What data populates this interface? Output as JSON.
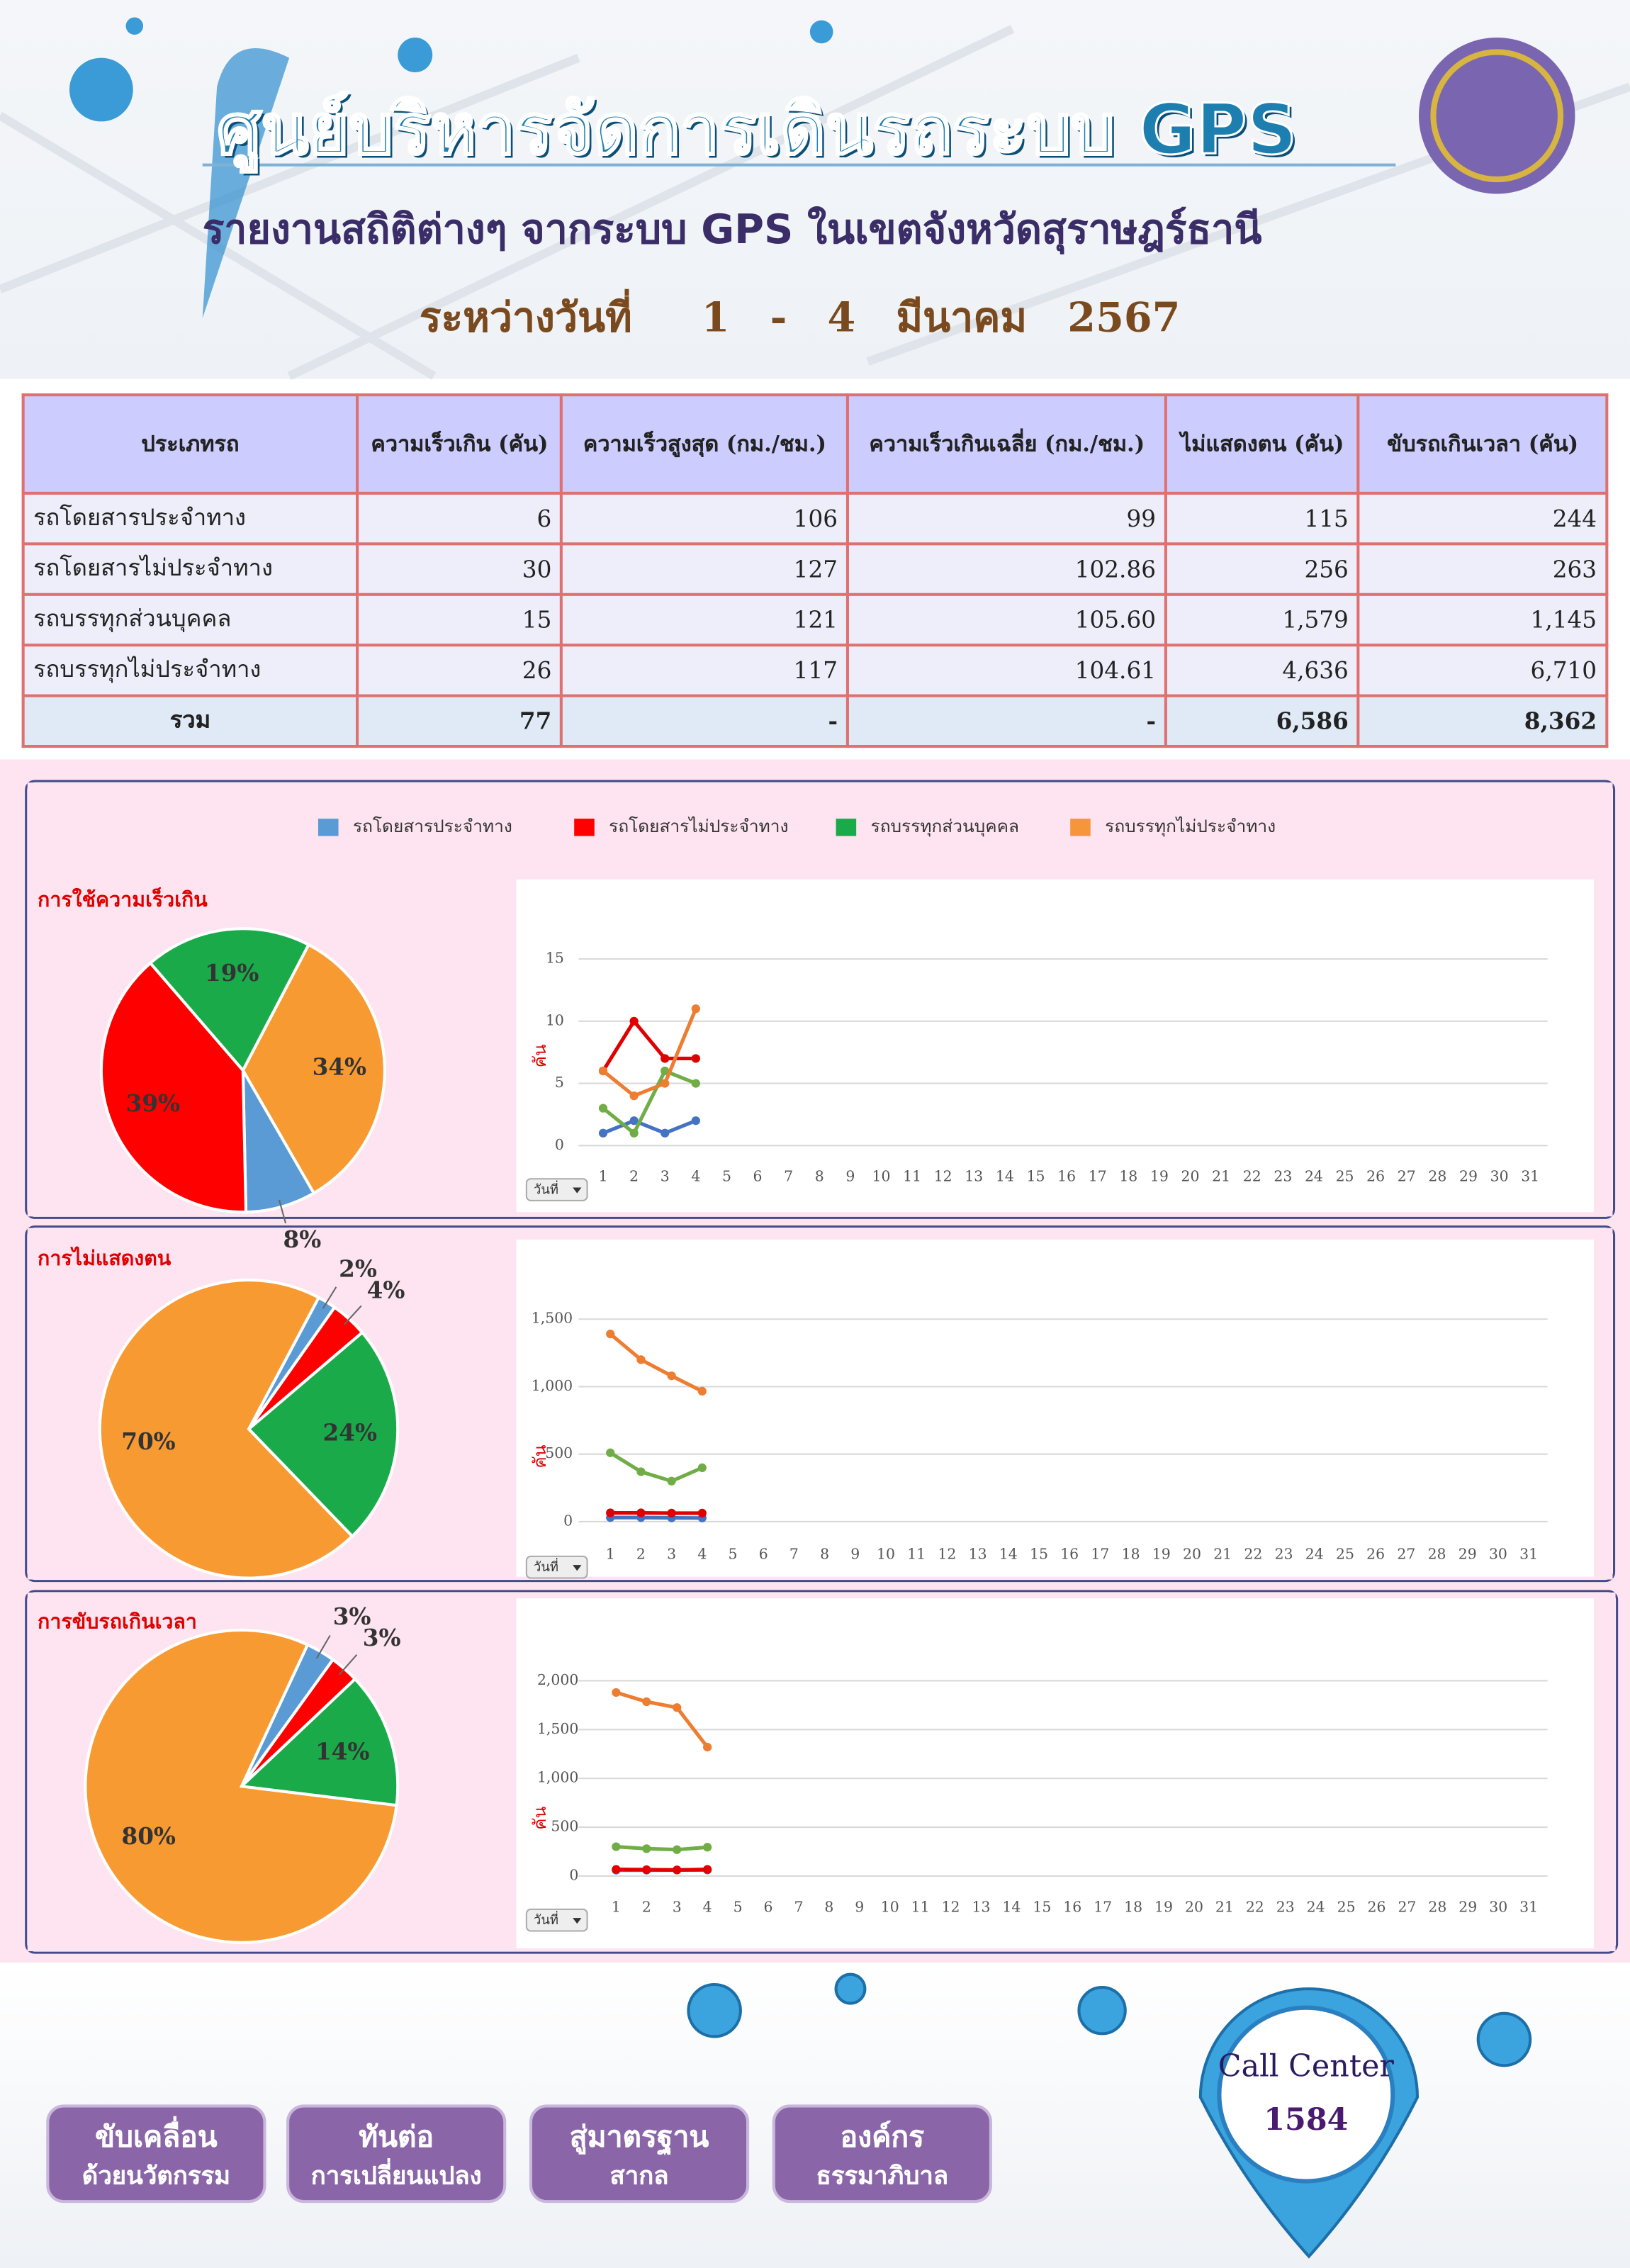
{
  "header": {
    "title": "ศูนย์บริหารจัดการเดินรถระบบ GPS",
    "subtitle": "รายงานสถิติต่างๆ จากระบบ GPS ในเขตจังหวัดสุราษฎร์ธานี",
    "date": [
      "ระหว่างวันที่",
      "1",
      "-",
      "4",
      "มีนาคม",
      "2567"
    ]
  },
  "table": {
    "header": [
      "ประเภทรถ",
      "ความเร็วเกิน (คัน)",
      "ความเร็วสูงสุด (กม./ชม.)",
      "ความเร็วเกินเฉลี่ย (กม./ชม.)",
      "ไม่แสดงตน (คัน)",
      "ขับรถเกินเวลา (คัน)"
    ],
    "rows": [
      [
        "รถโดยสารประจำทาง",
        "6",
        "106",
        "99",
        "115",
        "244"
      ],
      [
        "รถโดยสารไม่ประจำทาง",
        "30",
        "127",
        "102.86",
        "256",
        "263"
      ],
      [
        "รถบรรทุกส่วนบุคคล",
        "15",
        "121",
        "105.60",
        "1,579",
        "1,145"
      ],
      [
        "รถบรรทุกไม่ประจำทาง",
        "26",
        "117",
        "104.61",
        "4,636",
        "6,710"
      ],
      [
        "รวม",
        "77",
        "-",
        "-",
        "6,586",
        "8,362"
      ]
    ]
  },
  "legend": [
    {
      "name": "รถโดยสารประจำทาง",
      "color": "#5b9bd5"
    },
    {
      "name": "รถโดยสารไม่ประจำทาง",
      "color": "#ff0000"
    },
    {
      "name": "รถบรรทุกส่วนบุคคล",
      "color": "#1aaa4a"
    },
    {
      "name": "รถบรรทุกไม่ประจำทาง",
      "color": "#f5963a"
    }
  ],
  "chart_data": [
    {
      "type": "pie",
      "title": "การใช้ความเร็วเกิน",
      "values": [
        8,
        39,
        19,
        34
      ],
      "value_labels": [
        "8%",
        "39%",
        "19%",
        "34%"
      ],
      "colors": [
        "#5b9bd5",
        "#ff0000",
        "#1aaa4a",
        "#f89a32"
      ]
    },
    {
      "type": "line",
      "x": [
        1,
        2,
        3,
        4,
        5,
        6,
        7,
        8,
        9,
        10,
        11,
        12,
        13,
        14,
        15,
        16,
        17,
        18,
        19,
        20,
        21,
        22,
        23,
        24,
        25,
        26,
        27,
        28,
        29,
        30,
        31
      ],
      "ylabel": "คัน",
      "xbutton": "วันที่",
      "ylim": [
        0,
        15
      ],
      "yticks": [
        0,
        5,
        10,
        15
      ],
      "series": [
        {
          "color": "#4472c4",
          "values": [
            1,
            2,
            1,
            2,
            null,
            null,
            null,
            null,
            null,
            null,
            null,
            null,
            null,
            null,
            null,
            null,
            null,
            null,
            null,
            null,
            null,
            null,
            null,
            null,
            null,
            null,
            null,
            null,
            null,
            null,
            null
          ]
        },
        {
          "color": "#e00000",
          "values": [
            6,
            10,
            7,
            7,
            null,
            null,
            null,
            null,
            null,
            null,
            null,
            null,
            null,
            null,
            null,
            null,
            null,
            null,
            null,
            null,
            null,
            null,
            null,
            null,
            null,
            null,
            null,
            null,
            null,
            null,
            null
          ]
        },
        {
          "color": "#70ad47",
          "values": [
            3,
            1,
            6,
            5,
            null,
            null,
            null,
            null,
            null,
            null,
            null,
            null,
            null,
            null,
            null,
            null,
            null,
            null,
            null,
            null,
            null,
            null,
            null,
            null,
            null,
            null,
            null,
            null,
            null,
            null,
            null
          ]
        },
        {
          "color": "#ed7d31",
          "values": [
            6,
            4,
            5,
            11,
            null,
            null,
            null,
            null,
            null,
            null,
            null,
            null,
            null,
            null,
            null,
            null,
            null,
            null,
            null,
            null,
            null,
            null,
            null,
            null,
            null,
            null,
            null,
            null,
            null,
            null,
            null
          ]
        }
      ]
    },
    {
      "type": "pie",
      "title": "การไม่แสดงตน",
      "values": [
        2,
        4,
        24,
        70
      ],
      "value_labels": [
        "2%",
        "4%",
        "24%",
        "70%"
      ],
      "colors": [
        "#5b9bd5",
        "#ff0000",
        "#1aaa4a",
        "#f89a32"
      ]
    },
    {
      "type": "line",
      "x": [
        1,
        2,
        3,
        4,
        5,
        6,
        7,
        8,
        9,
        10,
        11,
        12,
        13,
        14,
        15,
        16,
        17,
        18,
        19,
        20,
        21,
        22,
        23,
        24,
        25,
        26,
        27,
        28,
        29,
        30,
        31
      ],
      "ylabel": "คัน",
      "xbutton": "วันที่",
      "ylim": [
        0,
        1500
      ],
      "yticks": [
        0,
        500,
        {
          "value": 1000,
          "label": "1,000"
        },
        {
          "value": 1500,
          "label": "1,500"
        }
      ],
      "series": [
        {
          "color": "#4472c4",
          "values": [
            30,
            30,
            28,
            27,
            null,
            null,
            null,
            null,
            null,
            null,
            null,
            null,
            null,
            null,
            null,
            null,
            null,
            null,
            null,
            null,
            null,
            null,
            null,
            null,
            null,
            null,
            null,
            null,
            null,
            null,
            null
          ]
        },
        {
          "color": "#e00000",
          "values": [
            65,
            65,
            63,
            63,
            null,
            null,
            null,
            null,
            null,
            null,
            null,
            null,
            null,
            null,
            null,
            null,
            null,
            null,
            null,
            null,
            null,
            null,
            null,
            null,
            null,
            null,
            null,
            null,
            null,
            null,
            null
          ]
        },
        {
          "color": "#70ad47",
          "values": [
            510,
            370,
            300,
            399,
            null,
            null,
            null,
            null,
            null,
            null,
            null,
            null,
            null,
            null,
            null,
            null,
            null,
            null,
            null,
            null,
            null,
            null,
            null,
            null,
            null,
            null,
            null,
            null,
            null,
            null,
            null
          ]
        },
        {
          "color": "#ed7d31",
          "values": [
            1390,
            1200,
            1080,
            966,
            null,
            null,
            null,
            null,
            null,
            null,
            null,
            null,
            null,
            null,
            null,
            null,
            null,
            null,
            null,
            null,
            null,
            null,
            null,
            null,
            null,
            null,
            null,
            null,
            null,
            null,
            null
          ]
        }
      ]
    },
    {
      "type": "pie",
      "title": "การขับรถเกินเวลา",
      "values": [
        3,
        3,
        14,
        80
      ],
      "value_labels": [
        "3%",
        "3%",
        "14%",
        "80%"
      ],
      "colors": [
        "#5b9bd5",
        "#ff0000",
        "#1aaa4a",
        "#f89a32"
      ]
    },
    {
      "type": "line",
      "x": [
        1,
        2,
        3,
        4,
        5,
        6,
        7,
        8,
        9,
        10,
        11,
        12,
        13,
        14,
        15,
        16,
        17,
        18,
        19,
        20,
        21,
        22,
        23,
        24,
        25,
        26,
        27,
        28,
        29,
        30,
        31
      ],
      "ylabel": "คัน",
      "xbutton": "วันที่",
      "ylim": [
        0,
        2000
      ],
      "yticks": [
        0,
        500,
        {
          "value": 1000,
          "label": "1,000"
        },
        {
          "value": 1500,
          "label": "1,500"
        },
        {
          "value": 2000,
          "label": "2,000"
        }
      ],
      "series": [
        {
          "color": "#4472c4",
          "values": [
            60,
            60,
            62,
            62,
            null,
            null,
            null,
            null,
            null,
            null,
            null,
            null,
            null,
            null,
            null,
            null,
            null,
            null,
            null,
            null,
            null,
            null,
            null,
            null,
            null,
            null,
            null,
            null,
            null,
            null,
            null
          ]
        },
        {
          "color": "#e00000",
          "values": [
            68,
            65,
            62,
            68,
            null,
            null,
            null,
            null,
            null,
            null,
            null,
            null,
            null,
            null,
            null,
            null,
            null,
            null,
            null,
            null,
            null,
            null,
            null,
            null,
            null,
            null,
            null,
            null,
            null,
            null,
            null
          ]
        },
        {
          "color": "#70ad47",
          "values": [
            300,
            280,
            270,
            295,
            null,
            null,
            null,
            null,
            null,
            null,
            null,
            null,
            null,
            null,
            null,
            null,
            null,
            null,
            null,
            null,
            null,
            null,
            null,
            null,
            null,
            null,
            null,
            null,
            null,
            null,
            null
          ]
        },
        {
          "color": "#ed7d31",
          "values": [
            1880,
            1785,
            1725,
            1320,
            null,
            null,
            null,
            null,
            null,
            null,
            null,
            null,
            null,
            null,
            null,
            null,
            null,
            null,
            null,
            null,
            null,
            null,
            null,
            null,
            null,
            null,
            null,
            null,
            null,
            null,
            null
          ]
        }
      ]
    }
  ],
  "footer": {
    "buttons": [
      [
        "ขับเคลื่อน",
        "ด้วยนวัตกรรม"
      ],
      [
        "ทันต่อ",
        "การเปลี่ยนแปลง"
      ],
      [
        "สู่มาตรฐาน",
        "สากล"
      ],
      [
        "องค์กร",
        "ธรรมาภิบาล"
      ]
    ],
    "call_center": {
      "label": "Call Center",
      "number": "1584"
    }
  }
}
